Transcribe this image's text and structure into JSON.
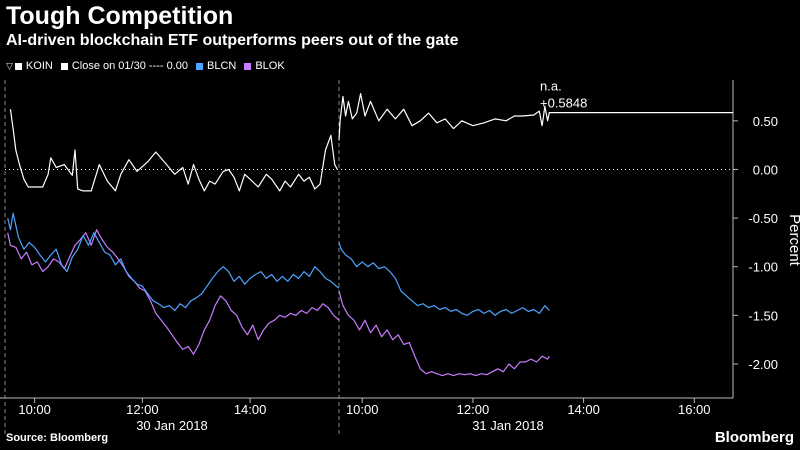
{
  "header": {
    "title": "Tough Competition",
    "subtitle": "AI-driven blockchain ETF outperforms peers out of the gate"
  },
  "footer": {
    "source": "Source: Bloomberg",
    "brand": "Bloomberg"
  },
  "chart_data": {
    "type": "line",
    "ylabel": "Percent",
    "ylim": [
      -2.35,
      0.92
    ],
    "yticks": [
      "0.50",
      "0.00",
      "-0.50",
      "-1.00",
      "-1.50",
      "-2.00"
    ],
    "ytick_values": [
      0.5,
      0.0,
      -0.5,
      -1.0,
      -1.5,
      -2.0
    ],
    "xlim": [
      9.45,
      16.7
    ],
    "xticks": [
      "10:00",
      "12:00",
      "14:00",
      "10:00",
      "12:00",
      "14:00",
      "16:00"
    ],
    "xtick_values": [
      10,
      12,
      14,
      10,
      12,
      14,
      16
    ],
    "day_labels": [
      "30 Jan 2018",
      "31 Jan 2018"
    ],
    "grid": false,
    "legend_position": "top-left",
    "reference_line": {
      "label": "Close on 01/30 ---- 0.00",
      "value": 0.0
    },
    "annotations": {
      "na": "n.a.",
      "last_value": "+0.5848"
    },
    "series": [
      {
        "name": "KOIN",
        "color": "#ffffff",
        "day1": [
          [
            9.55,
            0.62
          ],
          [
            9.6,
            0.42
          ],
          [
            9.65,
            0.2
          ],
          [
            9.72,
            0.05
          ],
          [
            9.8,
            -0.1
          ],
          [
            9.88,
            -0.18
          ],
          [
            10.0,
            -0.18
          ],
          [
            10.15,
            -0.18
          ],
          [
            10.25,
            -0.05
          ],
          [
            10.3,
            0.12
          ],
          [
            10.4,
            0.02
          ],
          [
            10.55,
            0.05
          ],
          [
            10.7,
            -0.06
          ],
          [
            10.75,
            0.2
          ],
          [
            10.8,
            -0.2
          ],
          [
            10.9,
            -0.22
          ],
          [
            11.05,
            -0.22
          ],
          [
            11.2,
            0.05
          ],
          [
            11.35,
            -0.12
          ],
          [
            11.5,
            -0.22
          ],
          [
            11.6,
            -0.05
          ],
          [
            11.75,
            0.1
          ],
          [
            11.9,
            -0.02
          ],
          [
            12.1,
            0.08
          ],
          [
            12.25,
            0.18
          ],
          [
            12.45,
            0.05
          ],
          [
            12.6,
            -0.05
          ],
          [
            12.75,
            0.02
          ],
          [
            12.85,
            -0.15
          ],
          [
            12.95,
            0.05
          ],
          [
            13.05,
            -0.1
          ],
          [
            13.15,
            -0.22
          ],
          [
            13.25,
            -0.12
          ],
          [
            13.35,
            -0.15
          ],
          [
            13.5,
            -0.02
          ],
          [
            13.6,
            0.0
          ],
          [
            13.7,
            -0.08
          ],
          [
            13.8,
            -0.22
          ],
          [
            13.9,
            -0.05
          ],
          [
            14.0,
            -0.1
          ],
          [
            14.15,
            -0.18
          ],
          [
            14.3,
            -0.05
          ],
          [
            14.4,
            -0.1
          ],
          [
            14.55,
            -0.22
          ],
          [
            14.65,
            -0.12
          ],
          [
            14.75,
            -0.18
          ],
          [
            14.9,
            -0.05
          ],
          [
            15.0,
            -0.12
          ],
          [
            15.1,
            -0.08
          ],
          [
            15.2,
            -0.2
          ],
          [
            15.3,
            -0.15
          ],
          [
            15.4,
            0.2
          ],
          [
            15.5,
            0.35
          ],
          [
            15.57,
            0.05
          ],
          [
            15.62,
            0.0
          ]
        ],
        "day2": [
          [
            9.58,
            0.3
          ],
          [
            9.6,
            0.5
          ],
          [
            9.65,
            0.75
          ],
          [
            9.7,
            0.55
          ],
          [
            9.75,
            0.7
          ],
          [
            9.82,
            0.52
          ],
          [
            9.9,
            0.58
          ],
          [
            9.97,
            0.78
          ],
          [
            10.05,
            0.55
          ],
          [
            10.15,
            0.7
          ],
          [
            10.3,
            0.5
          ],
          [
            10.45,
            0.62
          ],
          [
            10.6,
            0.52
          ],
          [
            10.75,
            0.62
          ],
          [
            10.9,
            0.45
          ],
          [
            11.05,
            0.5
          ],
          [
            11.2,
            0.58
          ],
          [
            11.35,
            0.48
          ],
          [
            11.5,
            0.52
          ],
          [
            11.65,
            0.42
          ],
          [
            11.8,
            0.5
          ],
          [
            12.0,
            0.45
          ],
          [
            12.2,
            0.48
          ],
          [
            12.4,
            0.52
          ],
          [
            12.6,
            0.5
          ],
          [
            12.75,
            0.55
          ],
          [
            12.9,
            0.55
          ],
          [
            13.1,
            0.56
          ],
          [
            13.2,
            0.6
          ],
          [
            13.25,
            0.45
          ],
          [
            13.3,
            0.65
          ],
          [
            13.35,
            0.5
          ],
          [
            13.38,
            0.5848
          ],
          [
            16.7,
            0.5848
          ]
        ]
      },
      {
        "name": "BLCN",
        "color": "#4da3ff",
        "day1": [
          [
            9.5,
            -0.5
          ],
          [
            9.55,
            -0.62
          ],
          [
            9.6,
            -0.45
          ],
          [
            9.7,
            -0.7
          ],
          [
            9.8,
            -0.82
          ],
          [
            9.9,
            -0.75
          ],
          [
            10.0,
            -0.8
          ],
          [
            10.1,
            -0.88
          ],
          [
            10.2,
            -0.95
          ],
          [
            10.3,
            -0.88
          ],
          [
            10.4,
            -0.82
          ],
          [
            10.5,
            -0.98
          ],
          [
            10.6,
            -1.05
          ],
          [
            10.7,
            -0.9
          ],
          [
            10.8,
            -0.82
          ],
          [
            10.9,
            -0.68
          ],
          [
            11.0,
            -0.78
          ],
          [
            11.1,
            -0.65
          ],
          [
            11.2,
            -0.75
          ],
          [
            11.3,
            -0.85
          ],
          [
            11.4,
            -0.88
          ],
          [
            11.5,
            -0.98
          ],
          [
            11.6,
            -0.92
          ],
          [
            11.7,
            -1.05
          ],
          [
            11.8,
            -1.12
          ],
          [
            11.9,
            -1.18
          ],
          [
            12.0,
            -1.2
          ],
          [
            12.1,
            -1.28
          ],
          [
            12.2,
            -1.35
          ],
          [
            12.3,
            -1.38
          ],
          [
            12.4,
            -1.42
          ],
          [
            12.5,
            -1.4
          ],
          [
            12.6,
            -1.45
          ],
          [
            12.7,
            -1.38
          ],
          [
            12.8,
            -1.42
          ],
          [
            12.9,
            -1.35
          ],
          [
            13.0,
            -1.32
          ],
          [
            13.1,
            -1.28
          ],
          [
            13.2,
            -1.2
          ],
          [
            13.3,
            -1.12
          ],
          [
            13.4,
            -1.05
          ],
          [
            13.5,
            -1.0
          ],
          [
            13.6,
            -1.05
          ],
          [
            13.7,
            -1.15
          ],
          [
            13.8,
            -1.1
          ],
          [
            13.9,
            -1.18
          ],
          [
            14.0,
            -1.12
          ],
          [
            14.1,
            -1.08
          ],
          [
            14.2,
            -1.05
          ],
          [
            14.3,
            -1.12
          ],
          [
            14.4,
            -1.08
          ],
          [
            14.5,
            -1.15
          ],
          [
            14.6,
            -1.1
          ],
          [
            14.7,
            -1.15
          ],
          [
            14.8,
            -1.08
          ],
          [
            14.9,
            -1.12
          ],
          [
            15.0,
            -1.05
          ],
          [
            15.1,
            -1.1
          ],
          [
            15.2,
            -1.0
          ],
          [
            15.3,
            -1.05
          ],
          [
            15.4,
            -1.12
          ],
          [
            15.5,
            -1.15
          ],
          [
            15.6,
            -1.2
          ],
          [
            15.65,
            -1.22
          ]
        ],
        "day2": [
          [
            9.58,
            -0.75
          ],
          [
            9.62,
            -0.82
          ],
          [
            9.7,
            -0.88
          ],
          [
            9.8,
            -0.92
          ],
          [
            9.9,
            -1.0
          ],
          [
            10.0,
            -0.95
          ],
          [
            10.1,
            -1.0
          ],
          [
            10.2,
            -0.96
          ],
          [
            10.3,
            -1.02
          ],
          [
            10.4,
            -1.0
          ],
          [
            10.5,
            -1.05
          ],
          [
            10.6,
            -1.12
          ],
          [
            10.7,
            -1.25
          ],
          [
            10.8,
            -1.3
          ],
          [
            10.9,
            -1.35
          ],
          [
            11.0,
            -1.4
          ],
          [
            11.1,
            -1.38
          ],
          [
            11.2,
            -1.42
          ],
          [
            11.3,
            -1.4
          ],
          [
            11.4,
            -1.44
          ],
          [
            11.5,
            -1.42
          ],
          [
            11.6,
            -1.46
          ],
          [
            11.7,
            -1.44
          ],
          [
            11.8,
            -1.48
          ],
          [
            11.9,
            -1.5
          ],
          [
            12.0,
            -1.46
          ],
          [
            12.1,
            -1.44
          ],
          [
            12.2,
            -1.48
          ],
          [
            12.3,
            -1.45
          ],
          [
            12.4,
            -1.5
          ],
          [
            12.5,
            -1.46
          ],
          [
            12.6,
            -1.44
          ],
          [
            12.7,
            -1.48
          ],
          [
            12.8,
            -1.45
          ],
          [
            12.9,
            -1.42
          ],
          [
            13.0,
            -1.46
          ],
          [
            13.1,
            -1.44
          ],
          [
            13.2,
            -1.48
          ],
          [
            13.3,
            -1.4
          ],
          [
            13.38,
            -1.45
          ]
        ]
      },
      {
        "name": "BLOK",
        "color": "#c77dff",
        "day1": [
          [
            9.5,
            -0.65
          ],
          [
            9.55,
            -0.78
          ],
          [
            9.65,
            -0.8
          ],
          [
            9.75,
            -0.92
          ],
          [
            9.85,
            -0.85
          ],
          [
            9.95,
            -0.98
          ],
          [
            10.05,
            -0.95
          ],
          [
            10.15,
            -1.05
          ],
          [
            10.25,
            -1.0
          ],
          [
            10.35,
            -0.92
          ],
          [
            10.45,
            -0.95
          ],
          [
            10.55,
            -1.02
          ],
          [
            10.65,
            -0.9
          ],
          [
            10.75,
            -0.78
          ],
          [
            10.85,
            -0.72
          ],
          [
            10.95,
            -0.65
          ],
          [
            11.05,
            -0.78
          ],
          [
            11.15,
            -0.62
          ],
          [
            11.25,
            -0.72
          ],
          [
            11.35,
            -0.8
          ],
          [
            11.45,
            -0.85
          ],
          [
            11.55,
            -0.92
          ],
          [
            11.65,
            -1.0
          ],
          [
            11.75,
            -1.1
          ],
          [
            11.85,
            -1.15
          ],
          [
            11.95,
            -1.22
          ],
          [
            12.05,
            -1.25
          ],
          [
            12.15,
            -1.35
          ],
          [
            12.25,
            -1.48
          ],
          [
            12.35,
            -1.55
          ],
          [
            12.45,
            -1.62
          ],
          [
            12.55,
            -1.7
          ],
          [
            12.65,
            -1.78
          ],
          [
            12.75,
            -1.85
          ],
          [
            12.85,
            -1.82
          ],
          [
            12.95,
            -1.9
          ],
          [
            13.05,
            -1.8
          ],
          [
            13.15,
            -1.65
          ],
          [
            13.25,
            -1.55
          ],
          [
            13.35,
            -1.4
          ],
          [
            13.45,
            -1.3
          ],
          [
            13.55,
            -1.35
          ],
          [
            13.65,
            -1.45
          ],
          [
            13.75,
            -1.5
          ],
          [
            13.85,
            -1.62
          ],
          [
            13.95,
            -1.7
          ],
          [
            14.05,
            -1.6
          ],
          [
            14.15,
            -1.75
          ],
          [
            14.25,
            -1.65
          ],
          [
            14.35,
            -1.58
          ],
          [
            14.45,
            -1.55
          ],
          [
            14.55,
            -1.5
          ],
          [
            14.65,
            -1.52
          ],
          [
            14.75,
            -1.48
          ],
          [
            14.85,
            -1.5
          ],
          [
            14.95,
            -1.45
          ],
          [
            15.05,
            -1.48
          ],
          [
            15.15,
            -1.42
          ],
          [
            15.25,
            -1.45
          ],
          [
            15.35,
            -1.38
          ],
          [
            15.45,
            -1.42
          ],
          [
            15.55,
            -1.5
          ],
          [
            15.65,
            -1.55
          ]
        ],
        "day2": [
          [
            9.58,
            -1.25
          ],
          [
            9.65,
            -1.4
          ],
          [
            9.75,
            -1.5
          ],
          [
            9.85,
            -1.55
          ],
          [
            9.95,
            -1.65
          ],
          [
            10.05,
            -1.55
          ],
          [
            10.15,
            -1.68
          ],
          [
            10.25,
            -1.6
          ],
          [
            10.35,
            -1.72
          ],
          [
            10.45,
            -1.65
          ],
          [
            10.55,
            -1.75
          ],
          [
            10.65,
            -1.7
          ],
          [
            10.75,
            -1.8
          ],
          [
            10.85,
            -1.78
          ],
          [
            10.95,
            -1.92
          ],
          [
            11.05,
            -2.05
          ],
          [
            11.15,
            -2.1
          ],
          [
            11.25,
            -2.08
          ],
          [
            11.35,
            -2.1
          ],
          [
            11.45,
            -2.12
          ],
          [
            11.55,
            -2.1
          ],
          [
            11.65,
            -2.12
          ],
          [
            11.75,
            -2.1
          ],
          [
            11.85,
            -2.11
          ],
          [
            11.95,
            -2.1
          ],
          [
            12.05,
            -2.12
          ],
          [
            12.15,
            -2.1
          ],
          [
            12.25,
            -2.11
          ],
          [
            12.35,
            -2.08
          ],
          [
            12.45,
            -2.05
          ],
          [
            12.55,
            -2.08
          ],
          [
            12.65,
            -2.0
          ],
          [
            12.75,
            -2.05
          ],
          [
            12.85,
            -1.98
          ],
          [
            12.95,
            -1.98
          ],
          [
            13.05,
            -1.95
          ],
          [
            13.15,
            -1.98
          ],
          [
            13.25,
            -1.92
          ],
          [
            13.35,
            -1.95
          ],
          [
            13.38,
            -1.92
          ]
        ]
      }
    ]
  }
}
